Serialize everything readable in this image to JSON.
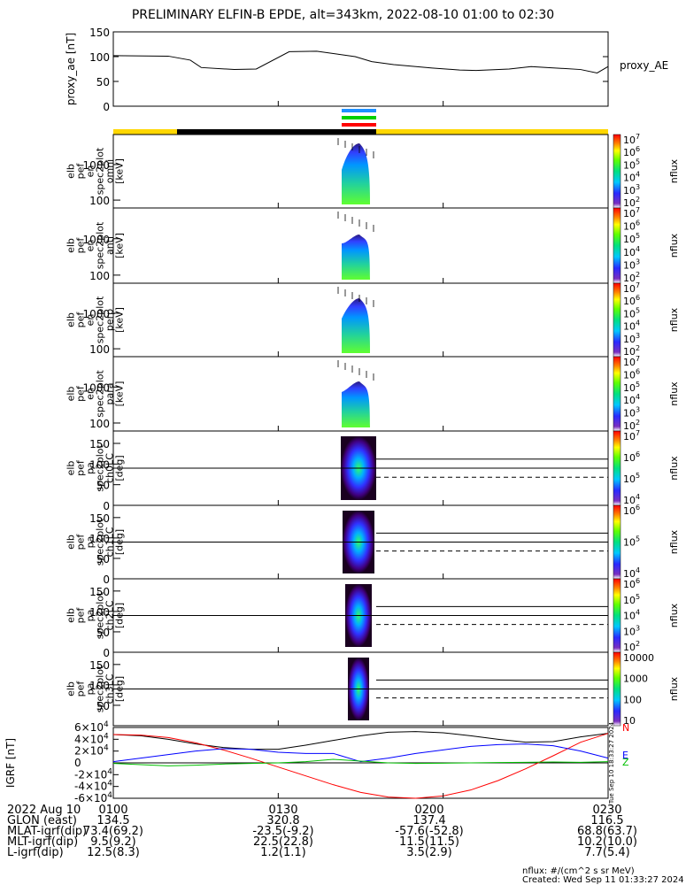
{
  "title": "PRELIMINARY ELFIN-B EPDE, alt=343km, 2022-08-10 01:00 to 02:30",
  "chart_data": [
    {
      "type": "line",
      "panel": "proxy_ae",
      "ylabel": "proxy_ae [nT]",
      "legend": "proxy_AE",
      "ylim": [
        0,
        150
      ],
      "yticks": [
        "0",
        "50",
        "100",
        "150"
      ],
      "x_minutes": [
        0,
        10,
        14,
        16,
        22,
        26,
        32,
        37,
        44,
        47,
        51,
        58,
        63,
        66,
        72,
        76,
        79,
        85,
        88,
        90
      ],
      "values": [
        102,
        101,
        93,
        78,
        74,
        75,
        110,
        111,
        100,
        90,
        84,
        77,
        73,
        72,
        75,
        80,
        78,
        74,
        67,
        80
      ]
    },
    {
      "type": "heatmap",
      "panel": "en_spec omni",
      "ylabel": "elb pef en spec2plot omni [keV]",
      "yticks": [
        "100",
        "1000"
      ],
      "colorbar": {
        "label": "nflux",
        "ticks": [
          "10^2",
          "10^3",
          "10^4",
          "10^5",
          "10^6",
          "10^7"
        ]
      }
    },
    {
      "type": "heatmap",
      "panel": "en_spec anti",
      "ylabel": "elb pef en spec2plot anti [keV]",
      "yticks": [
        "100",
        "1000"
      ],
      "colorbar": {
        "label": "nflux",
        "ticks": [
          "10^2",
          "10^3",
          "10^4",
          "10^5",
          "10^6",
          "10^7"
        ]
      }
    },
    {
      "type": "heatmap",
      "panel": "en_spec perp",
      "ylabel": "elb pef en spec2plot perp [keV]",
      "yticks": [
        "100",
        "1000"
      ],
      "colorbar": {
        "label": "nflux",
        "ticks": [
          "10^2",
          "10^3",
          "10^4",
          "10^5",
          "10^6",
          "10^7"
        ]
      }
    },
    {
      "type": "heatmap",
      "panel": "en_spec para",
      "ylabel": "elb pef en spec2plot para [keV]",
      "yticks": [
        "100",
        "1000"
      ],
      "colorbar": {
        "label": "nflux",
        "ticks": [
          "10^2",
          "10^3",
          "10^4",
          "10^5",
          "10^6",
          "10^7"
        ]
      }
    },
    {
      "type": "heatmap",
      "panel": "pa_spec ch0LC",
      "ylabel": "elb pef pa spec2plot ch0LC [deg]",
      "ylim": [
        0,
        180
      ],
      "yticks": [
        "0",
        "50",
        "100",
        "150"
      ],
      "colorbar": {
        "label": "nflux",
        "ticks": [
          "10^4",
          "10^5",
          "10^6",
          "10^7"
        ]
      }
    },
    {
      "type": "heatmap",
      "panel": "pa_spec ch1LC",
      "ylabel": "elb pef pa spec2plot ch1LC [deg]",
      "ylim": [
        0,
        180
      ],
      "yticks": [
        "0",
        "50",
        "100",
        "150"
      ],
      "colorbar": {
        "label": "nflux",
        "ticks": [
          "10^4",
          "10^5",
          "10^6"
        ]
      }
    },
    {
      "type": "heatmap",
      "panel": "pa_spec ch2LC",
      "ylabel": "elb pef pa spec2plot ch2LC [deg]",
      "ylim": [
        0,
        180
      ],
      "yticks": [
        "0",
        "50",
        "100",
        "150"
      ],
      "colorbar": {
        "label": "nflux",
        "ticks": [
          "10^2",
          "10^3",
          "10^4",
          "10^5",
          "10^6"
        ]
      }
    },
    {
      "type": "heatmap",
      "panel": "pa_spec ch3LC",
      "ylabel": "elb pef pa spec2plot ch3LC [deg]",
      "ylim": [
        0,
        180
      ],
      "yticks": [
        "50",
        "100",
        "150"
      ],
      "colorbar": {
        "label": "nflux",
        "ticks": [
          "10",
          "100",
          "1000",
          "10000"
        ]
      }
    },
    {
      "type": "line",
      "panel": "IGRF",
      "ylabel": "IGRF [nT]",
      "ylim": [
        -60000,
        60000
      ],
      "yticks": [
        "-6×10^4",
        "-4×10^4",
        "-2×10^4",
        "0",
        "2×10^4",
        "4×10^4",
        "6×10^4"
      ],
      "legend": [
        "N",
        "E",
        "Z"
      ],
      "x_minutes": [
        0,
        5,
        10,
        15,
        20,
        25,
        30,
        35,
        40,
        45,
        50,
        55,
        60,
        65,
        70,
        75,
        80,
        85,
        90
      ],
      "series": [
        {
          "color": "#000000",
          "values": [
            48000,
            46000,
            40000,
            32000,
            26000,
            23000,
            23000,
            30000,
            38000,
            46000,
            52000,
            53000,
            51000,
            46000,
            40000,
            35000,
            36000,
            44000,
            50000
          ]
        },
        {
          "color": "#ff0000",
          "values": [
            48000,
            47000,
            43000,
            34000,
            22000,
            8000,
            -7000,
            -22000,
            -37000,
            -50000,
            -58000,
            -60000,
            -56000,
            -46000,
            -30000,
            -10000,
            12000,
            35000,
            50000
          ]
        },
        {
          "color": "#0000ff",
          "values": [
            2000,
            8000,
            14000,
            20000,
            24000,
            23000,
            18000,
            16000,
            16000,
            2000,
            8000,
            16000,
            22000,
            28000,
            31000,
            32000,
            29000,
            20000,
            8000
          ]
        },
        {
          "color": "#00c000",
          "values": [
            -1000,
            -3000,
            -5000,
            -4000,
            -2000,
            -1000,
            0,
            2000,
            6000,
            3000,
            0,
            -1000,
            -500,
            0,
            500,
            1000,
            1500,
            1000,
            2000
          ]
        }
      ]
    }
  ],
  "orbit_bars": {
    "colors": [
      "#1e90ff",
      "#00d000",
      "#ff0000"
    ]
  },
  "xaxis_rows": [
    {
      "label": "2022 Aug 10",
      "values": [
        "0100",
        "0130",
        "0200",
        "0230"
      ]
    },
    {
      "label": "GLON (east)",
      "values": [
        "134.5",
        "320.8",
        "137.4",
        "116.5"
      ]
    },
    {
      "label": "MLAT-igrf(dip)",
      "values": [
        "73.4(69.2)",
        "-23.5(-9.2)",
        "-57.6(-52.8)",
        "68.8(63.7)"
      ]
    },
    {
      "label": "MLT-igrf(dip)",
      "values": [
        "9.5(9.2)",
        "22.5(22.8)",
        "11.5(11.5)",
        "10.2(10.0)"
      ]
    },
    {
      "label": "L-igrf(dip)",
      "values": [
        "12.5(8.3)",
        "1.2(1.1)",
        "3.5(2.9)",
        "7.7(5.4)"
      ]
    }
  ],
  "footer": {
    "units": "nflux: #/(cm^2 s sr MeV)",
    "created": "Created: Wed Sep 11 01:33:27 2024",
    "side_stamp": "Tue Sep 10 18:33:27 2024"
  }
}
